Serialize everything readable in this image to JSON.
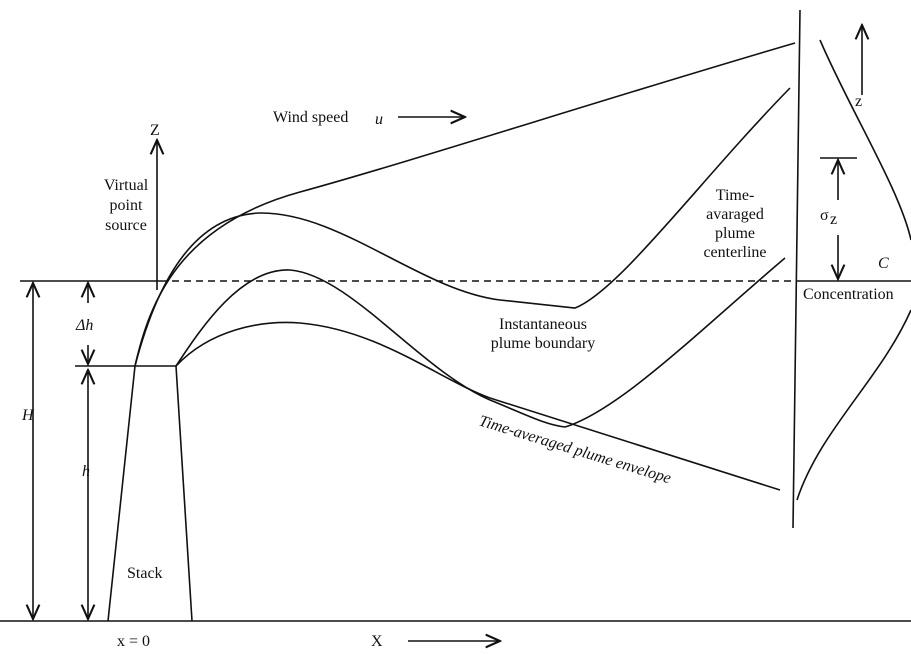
{
  "labels": {
    "wind_speed": "Wind speed",
    "wind_symbol": "u",
    "z_axis": "Z",
    "virtual_point_source": [
      "Virtual",
      "point",
      "source"
    ],
    "centerline": [
      "Time-",
      "avaraged",
      "plume",
      "centerline"
    ],
    "instantaneous": [
      "Instantaneous",
      "plume boundary"
    ],
    "envelope": "Time-averaged plume envelope",
    "delta_h": "Δh",
    "big_h": "H",
    "small_h": "h",
    "stack": "Stack",
    "x_zero": "x = 0",
    "x_axis": "X",
    "profile_z": "z",
    "sigma": "σ",
    "sigma_sub": "z",
    "c": "C",
    "concentration": "Concentration"
  }
}
